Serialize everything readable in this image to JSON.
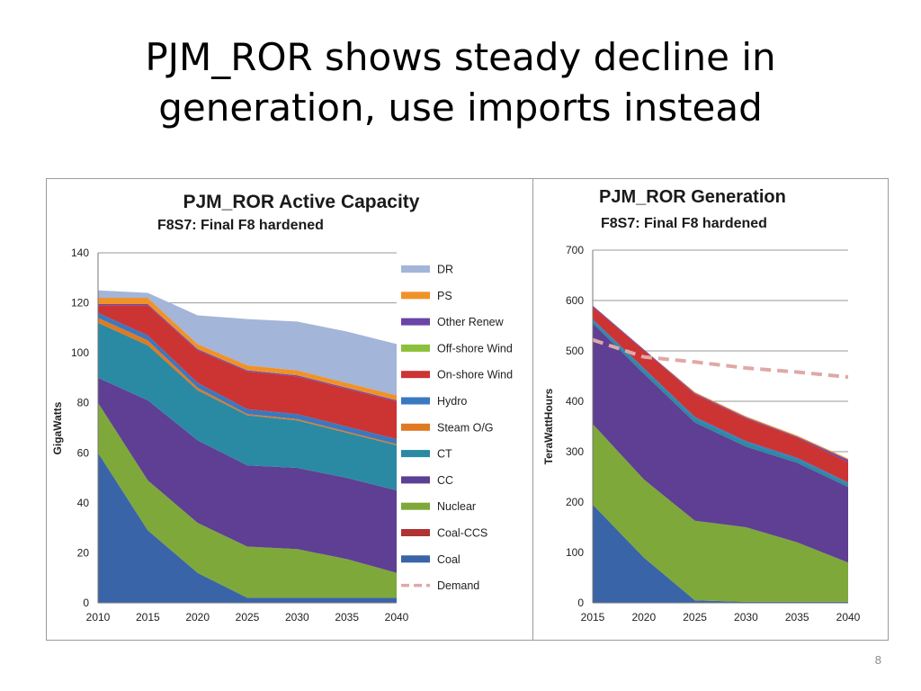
{
  "slide": {
    "title_line1": "PJM_ROR shows steady decline in",
    "title_line2": "generation, use imports instead",
    "page_number": "8"
  },
  "chart_data": [
    {
      "type": "area",
      "title": "PJM_ROR Active Capacity",
      "subtitle": "F8S7: Final F8 hardened",
      "xlabel": "",
      "ylabel": "GigaWatts",
      "ylim": [
        0,
        140
      ],
      "yticks": [
        0,
        20,
        40,
        60,
        80,
        100,
        120,
        140
      ],
      "x": [
        2010,
        2015,
        2020,
        2025,
        2030,
        2035,
        2040
      ],
      "stacked": true,
      "grid": true,
      "legend_position": "right",
      "series": [
        {
          "name": "Coal",
          "color": "#3a64a8",
          "values": [
            60,
            29,
            12,
            2,
            2,
            2,
            2
          ]
        },
        {
          "name": "Coal-CCS",
          "color": "#b03232",
          "values": [
            0,
            0,
            0,
            0,
            0,
            0,
            0
          ]
        },
        {
          "name": "Nuclear",
          "color": "#7ea83a",
          "values": [
            20,
            20,
            20,
            20.5,
            19.5,
            15.5,
            10
          ]
        },
        {
          "name": "CC",
          "color": "#5e3f93",
          "values": [
            10,
            32,
            33,
            32.5,
            32.5,
            32.5,
            33
          ]
        },
        {
          "name": "CT",
          "color": "#2a8aa3",
          "values": [
            22,
            22,
            20,
            20,
            19,
            18,
            18
          ]
        },
        {
          "name": "Steam O/G",
          "color": "#e07a22",
          "values": [
            2,
            2,
            1,
            0.5,
            0.5,
            0.5,
            0.5
          ]
        },
        {
          "name": "Hydro",
          "color": "#3a78c0",
          "values": [
            2,
            2,
            2,
            2,
            2,
            2,
            2
          ]
        },
        {
          "name": "On-shore Wind",
          "color": "#cc3333",
          "values": [
            3,
            12,
            13,
            15,
            15,
            15,
            15
          ]
        },
        {
          "name": "Off-shore Wind",
          "color": "#98c04a",
          "values": [
            0,
            0,
            0,
            0,
            0,
            0,
            0
          ]
        },
        {
          "name": "Other Renew",
          "color": "#7048a8",
          "values": [
            0.5,
            0.5,
            0.5,
            0.5,
            0.5,
            0.5,
            0.5
          ]
        },
        {
          "name": "PS",
          "color": "#f0922a",
          "values": [
            2.5,
            2.5,
            2,
            2,
            2,
            2,
            2
          ]
        },
        {
          "name": "DR",
          "color": "#a3b5d8",
          "values": [
            3,
            2,
            11.5,
            18.5,
            19.5,
            20.5,
            20.5
          ]
        }
      ],
      "legend": [
        "DR",
        "PS",
        "Other Renew",
        "Off-shore Wind",
        "On-shore Wind",
        "Hydro",
        "Steam O/G",
        "CT",
        "CC",
        "Nuclear",
        "Coal-CCS",
        "Coal",
        "Demand"
      ],
      "legend_colors": {
        "DR": "#a3b5d8",
        "PS": "#f0922a",
        "Other Renew": "#6a44a6",
        "Off-shore Wind": "#8cc03a",
        "On-shore Wind": "#cc3333",
        "Hydro": "#3a78c0",
        "Steam O/G": "#e07a22",
        "CT": "#2a8aa3",
        "CC": "#5e3f93",
        "Nuclear": "#7ea83a",
        "Coal-CCS": "#b03232",
        "Coal": "#3a64a8",
        "Demand": "#e0a8a8"
      }
    },
    {
      "type": "area",
      "title": "PJM_ROR Generation",
      "subtitle": "F8S7: Final F8 hardened",
      "xlabel": "",
      "ylabel": "TeraWattHours",
      "ylim": [
        0,
        700
      ],
      "yticks": [
        0,
        100,
        200,
        300,
        400,
        500,
        600,
        700
      ],
      "x": [
        2015,
        2020,
        2025,
        2030,
        2035,
        2040
      ],
      "stacked": true,
      "grid": true,
      "series": [
        {
          "name": "Coal",
          "color": "#3a64a8",
          "values": [
            195,
            90,
            5,
            2,
            2,
            2
          ]
        },
        {
          "name": "Nuclear",
          "color": "#7ea83a",
          "values": [
            160,
            155,
            158,
            148,
            118,
            78
          ]
        },
        {
          "name": "CC",
          "color": "#5e3f93",
          "values": [
            200,
            210,
            195,
            160,
            158,
            150
          ]
        },
        {
          "name": "CT",
          "color": "#2a8aa3",
          "values": [
            5,
            8,
            8,
            8,
            7,
            6
          ]
        },
        {
          "name": "Hydro",
          "color": "#3a78c0",
          "values": [
            3,
            3,
            3,
            3,
            3,
            3
          ]
        },
        {
          "name": "On-shore Wind",
          "color": "#cc3333",
          "values": [
            25,
            35,
            45,
            45,
            40,
            40
          ]
        },
        {
          "name": "Other Renew",
          "color": "#7048a8",
          "values": [
            2,
            2,
            2,
            2,
            2,
            5
          ]
        },
        {
          "name": "PS",
          "color": "#f0922a",
          "values": [
            0,
            0,
            2,
            2,
            2,
            2
          ]
        }
      ],
      "demand": {
        "name": "Demand",
        "color": "#e0a8a8",
        "values": [
          522,
          488,
          478,
          466,
          458,
          448
        ]
      }
    }
  ]
}
